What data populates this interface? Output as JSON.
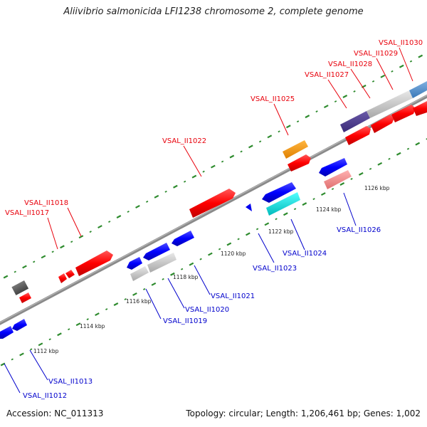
{
  "title": "Aliivibrio salmonicida LFI1238 chromosome 2, complete genome",
  "footer": {
    "accession": "Accession: NC_011313",
    "summary": "Topology: circular; Length: 1,206,461 bp; Genes: 1,002"
  },
  "colors": {
    "forward_label": "#e8000b",
    "reverse_label": "#0000cc",
    "backbone": "#888888",
    "ticks": "#2e8b2e"
  },
  "scale_labels": [
    "1112 kbp",
    "1114 kbp",
    "1116 kbp",
    "1118 kbp",
    "1120 kbp",
    "1122 kbp",
    "1124 kbp",
    "1126 kbp"
  ],
  "forward_labels": [
    {
      "text": "VSAL_II1017"
    },
    {
      "text": "VSAL_II1018"
    },
    {
      "text": "VSAL_II1022"
    },
    {
      "text": "VSAL_II1025"
    },
    {
      "text": "VSAL_II1027"
    },
    {
      "text": "VSAL_II1028"
    },
    {
      "text": "VSAL_II1029"
    },
    {
      "text": "VSAL_II1030"
    }
  ],
  "reverse_labels": [
    {
      "text": "VSAL_II1012"
    },
    {
      "text": "VSAL_II1013"
    },
    {
      "text": "VSAL_II1019"
    },
    {
      "text": "VSAL_II1020"
    },
    {
      "text": "VSAL_II1021"
    },
    {
      "text": "VSAL_II1023"
    },
    {
      "text": "VSAL_II1024"
    },
    {
      "text": "VSAL_II1026"
    }
  ]
}
